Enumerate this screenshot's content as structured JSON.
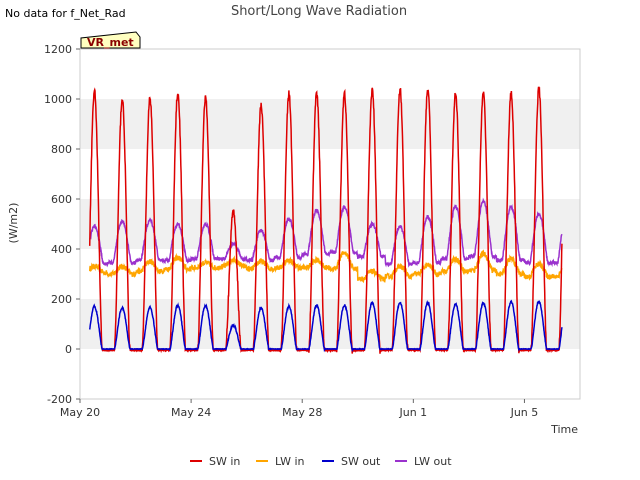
{
  "page_note": "No data for f_Net_Rad",
  "site_badge": "VR_met",
  "chart_data": {
    "type": "line",
    "title": "Short/Long Wave Radiation",
    "xlabel": "Time",
    "ylabel": "(W/m2)",
    "xlim": [
      0,
      18
    ],
    "ylim": [
      -200,
      1200
    ],
    "yticks": [
      -200,
      0,
      200,
      400,
      600,
      800,
      1000,
      1200
    ],
    "xticks": [
      {
        "day": 0,
        "label": "May 20"
      },
      {
        "day": 4,
        "label": "May 24"
      },
      {
        "day": 8,
        "label": "May 28"
      },
      {
        "day": 12,
        "label": "Jun 1"
      },
      {
        "day": 16,
        "label": "Jun 5"
      }
    ],
    "grid": "horizontal bands",
    "legend": "bottom",
    "data_range": [
      0.35,
      17.35
    ],
    "series": [
      {
        "name": "SW in",
        "color": "#dd0000",
        "daily_peak": [
          1030,
          1000,
          1000,
          1025,
          1010,
          550,
          975,
          1020,
          1020,
          1020,
          1035,
          1040,
          1040,
          1025,
          1020,
          1020,
          1040
        ],
        "daily_night": [
          -5,
          -5,
          -5,
          -5,
          -5,
          -5,
          -5,
          -5,
          -5,
          -5,
          -5,
          -5,
          -5,
          -5,
          -5,
          -5,
          -5
        ]
      },
      {
        "name": "LW in",
        "color": "#ffa500",
        "daily_peak": [
          330,
          330,
          350,
          365,
          345,
          355,
          350,
          355,
          355,
          385,
          310,
          330,
          335,
          360,
          380,
          360,
          340
        ],
        "daily_night": [
          305,
          300,
          310,
          320,
          325,
          330,
          320,
          325,
          325,
          320,
          280,
          290,
          300,
          310,
          315,
          300,
          290
        ]
      },
      {
        "name": "SW out",
        "color": "#0000cc",
        "daily_peak": [
          170,
          165,
          165,
          175,
          175,
          95,
          165,
          170,
          175,
          175,
          185,
          185,
          185,
          180,
          185,
          190,
          190
        ],
        "daily_night": [
          0,
          0,
          0,
          0,
          0,
          0,
          0,
          0,
          0,
          0,
          0,
          0,
          0,
          0,
          0,
          0,
          0
        ]
      },
      {
        "name": "LW out",
        "color": "#9a32cd",
        "daily_peak": [
          490,
          510,
          515,
          500,
          500,
          420,
          475,
          520,
          555,
          570,
          500,
          490,
          530,
          570,
          590,
          570,
          540
        ],
        "daily_night": [
          340,
          345,
          355,
          355,
          360,
          360,
          355,
          365,
          380,
          385,
          370,
          340,
          345,
          360,
          370,
          355,
          345
        ]
      }
    ]
  }
}
